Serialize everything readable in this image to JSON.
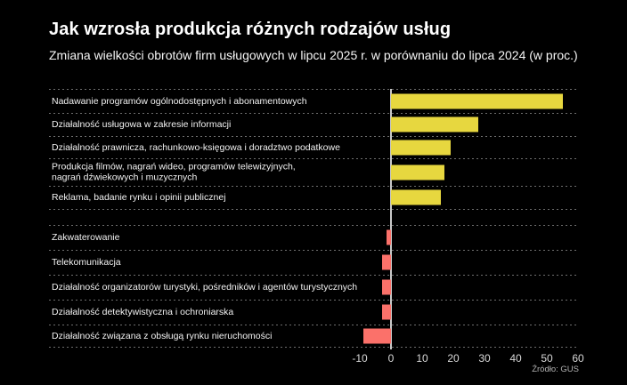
{
  "header": {
    "title": "Jak wzrosła produkcja różnych rodzajów usług",
    "subtitle": "Zmiana wielkości obrotów firm usługowych w lipcu 2025 r. w porównaniu do lipca 2024 (w proc.)"
  },
  "source": "Źródło: GUS",
  "colors": {
    "background": "#000000",
    "positive_bar": "#e7d73f",
    "negative_bar": "#fb716a",
    "gridline": "#6e6e6e",
    "zero_line": "#c8c8c8",
    "label_text": "#f2f2f2",
    "tick_text": "#d9d9d9",
    "source_text": "#b3b3b3"
  },
  "chart_data": {
    "type": "bar",
    "orientation": "horizontal",
    "title": "Jak wzrosła produkcja różnych rodzajów usług",
    "subtitle": "Zmiana wielkości obrotów firm usługowych w lipcu 2025 r. w porównaniu do lipca 2024 (w proc.)",
    "categories": [
      "Nadawanie programów ogólnodostępnych i abonamentowych",
      "Działalność usługowa w zakresie informacji",
      "Działalność prawnicza, rachunkowo-księgowa i doradztwo podatkowe",
      "Produkcja filmów, nagrań wideo, programów telewizyjnych,\nnagrań dźwiekowych i muzycznych",
      "Reklama, badanie rynku i opinii publicznej",
      "Zakwaterowanie",
      "Telekomunikacja",
      "Działalność organizatorów turystyki, pośredników i agentów turystycznych",
      "Działalność detektywistyczna i ochroniarska",
      "Działalność związana z obsługą rynku nieruchomości"
    ],
    "values": [
      55,
      28,
      19,
      17,
      16,
      -1.5,
      -3,
      -3,
      -3,
      -9
    ],
    "group_break_after_index": 4,
    "x_ticks": [
      -10,
      0,
      10,
      20,
      30,
      40,
      50,
      60
    ],
    "xlim": [
      -12,
      60
    ],
    "grid": "dashed horizontal row separators",
    "legend": "none",
    "xlabel": "",
    "ylabel": "",
    "source": "Źródło: GUS"
  }
}
